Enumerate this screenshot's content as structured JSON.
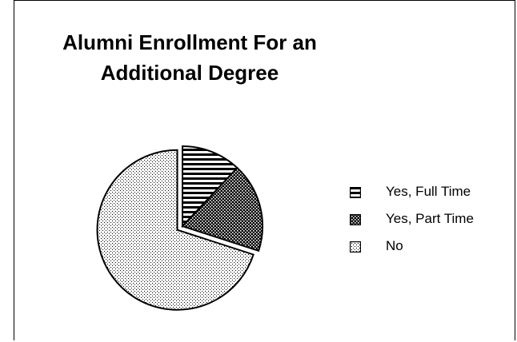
{
  "chart_data": {
    "type": "pie",
    "title_lines": [
      "Alumni Enrollment For an",
      "Additional Degree"
    ],
    "slices": [
      {
        "name": "Yes, Full Time",
        "value": 12,
        "pattern": "horizontal-stripes"
      },
      {
        "name": "Yes, Part Time",
        "value": 18,
        "pattern": "dense-dots"
      },
      {
        "name": "No",
        "value": 70,
        "pattern": "fine-dots"
      }
    ],
    "legend_position": "right",
    "exploded_slice": "No"
  }
}
